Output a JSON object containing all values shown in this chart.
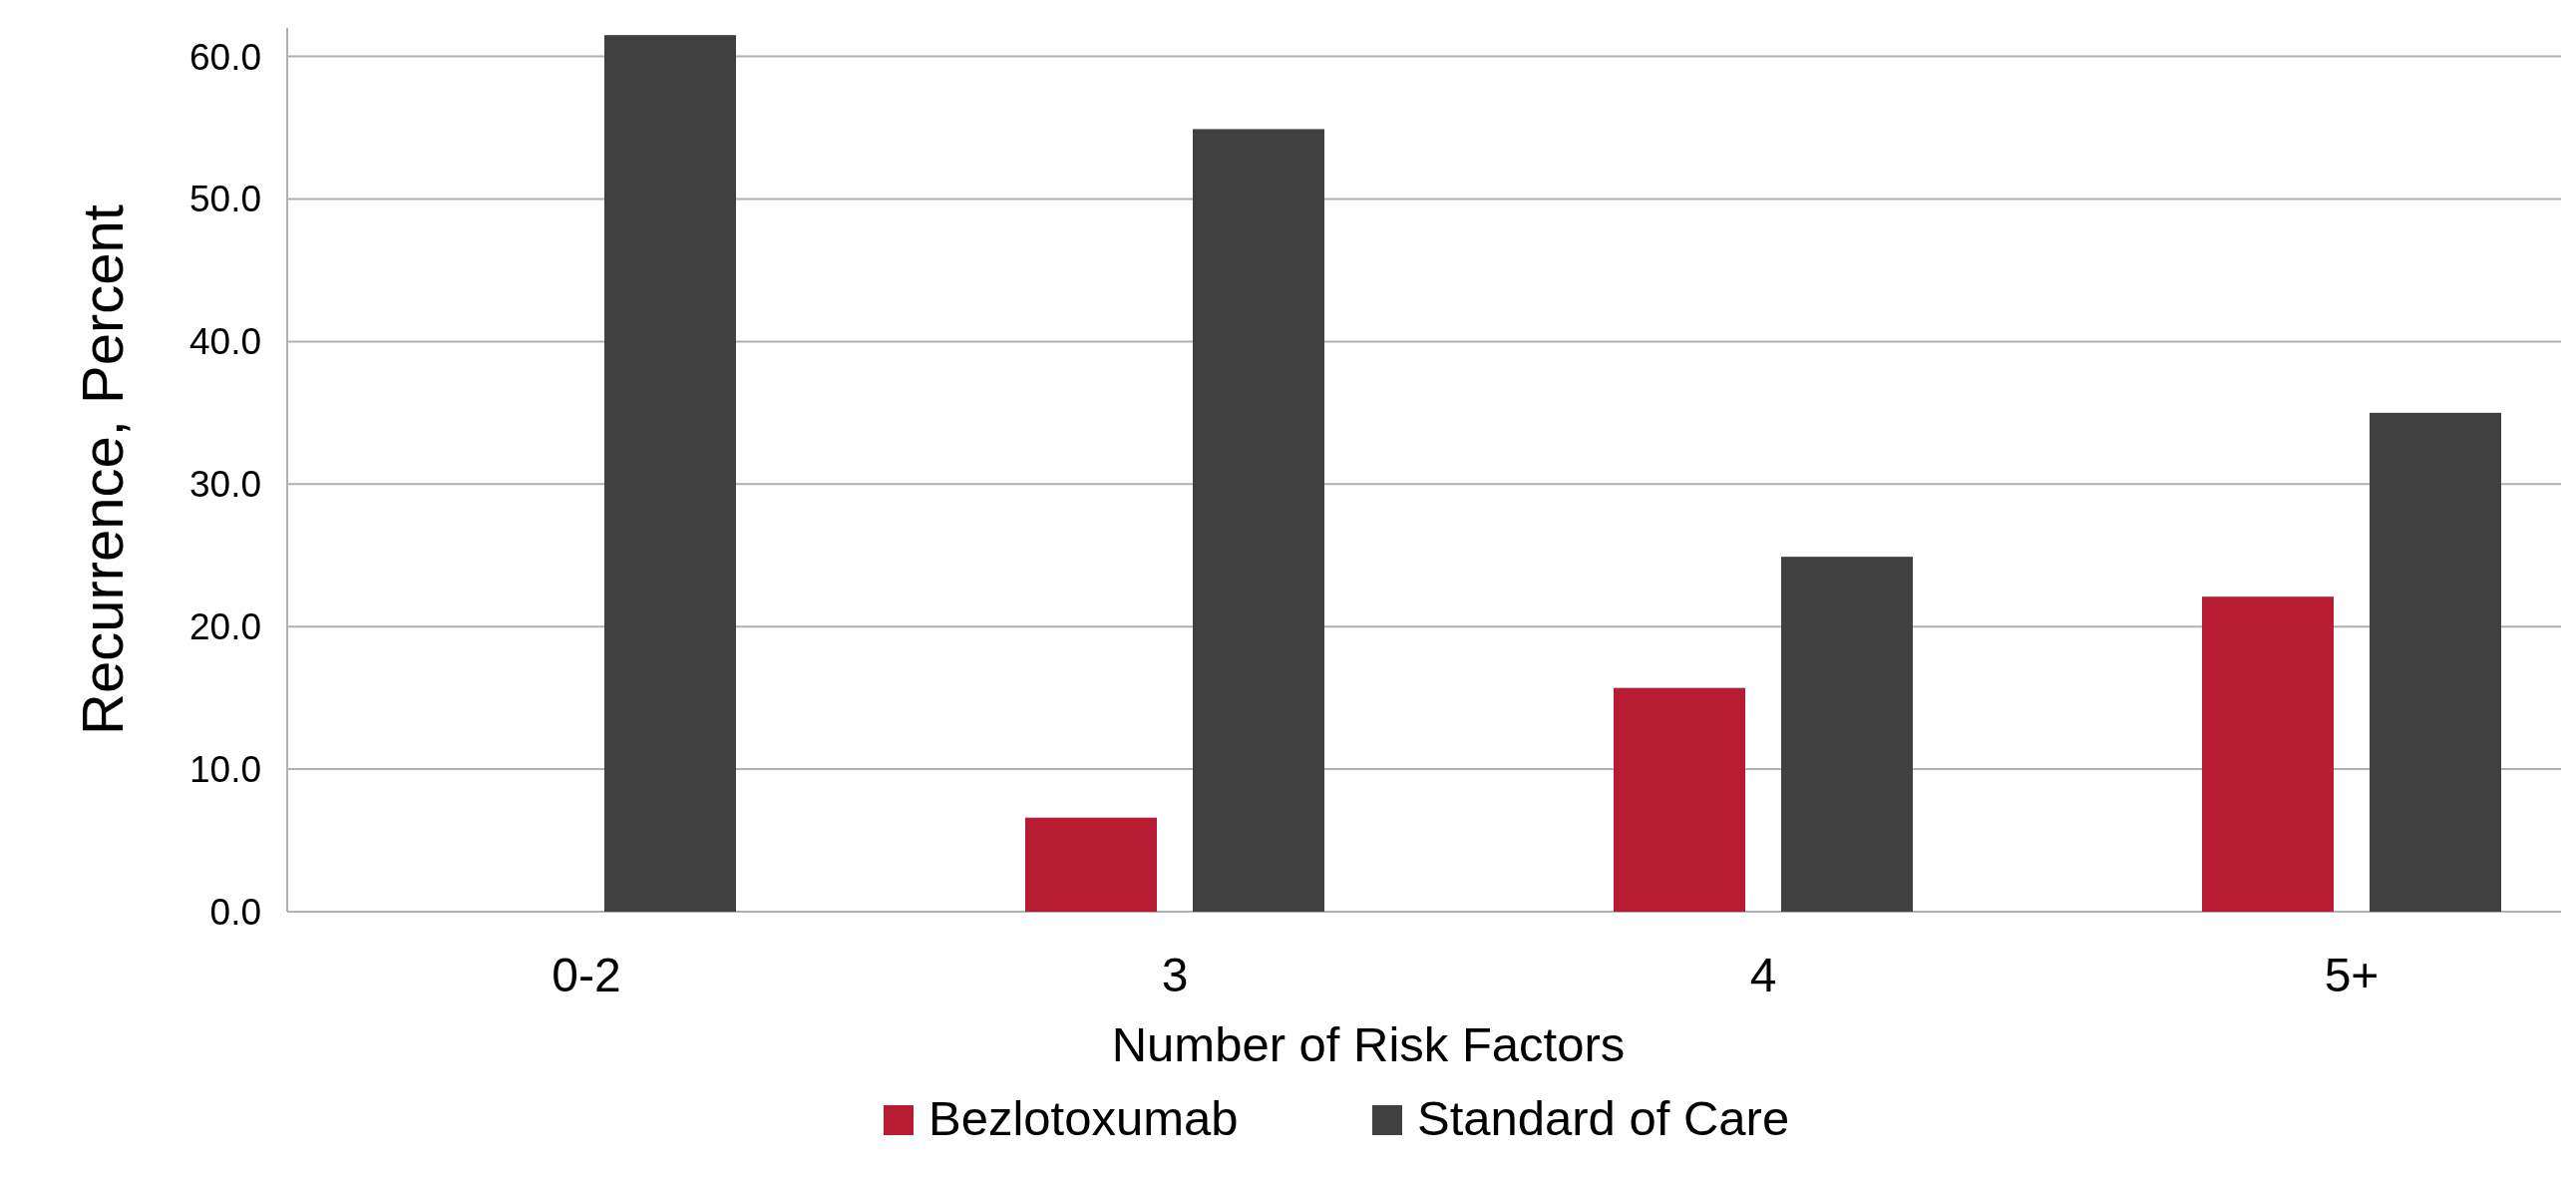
{
  "chart_data": {
    "type": "bar",
    "xlabel": "Number of Risk Factors",
    "ylabel": "Recurrence, Percent",
    "categories": [
      "0-2",
      "3",
      "4",
      "5+"
    ],
    "series": [
      {
        "name": "Bezlotoxumab",
        "color": "#b71c33",
        "values": [
          0,
          6.6,
          15.7,
          22.1
        ]
      },
      {
        "name": "Standard of Care",
        "color": "#404040",
        "values": [
          61.5,
          54.9,
          24.9,
          35.0
        ]
      }
    ],
    "ylim": [
      0,
      62
    ],
    "yticks": [
      {
        "value": 0,
        "label": "0.0"
      },
      {
        "value": 10,
        "label": "10.0"
      },
      {
        "value": 20,
        "label": "20.0"
      },
      {
        "value": 30,
        "label": "30.0"
      },
      {
        "value": 40,
        "label": "40.0"
      },
      {
        "value": 50,
        "label": "50.0"
      },
      {
        "value": 60,
        "label": "60.0"
      }
    ],
    "grid": "y",
    "legend": "bottom"
  }
}
